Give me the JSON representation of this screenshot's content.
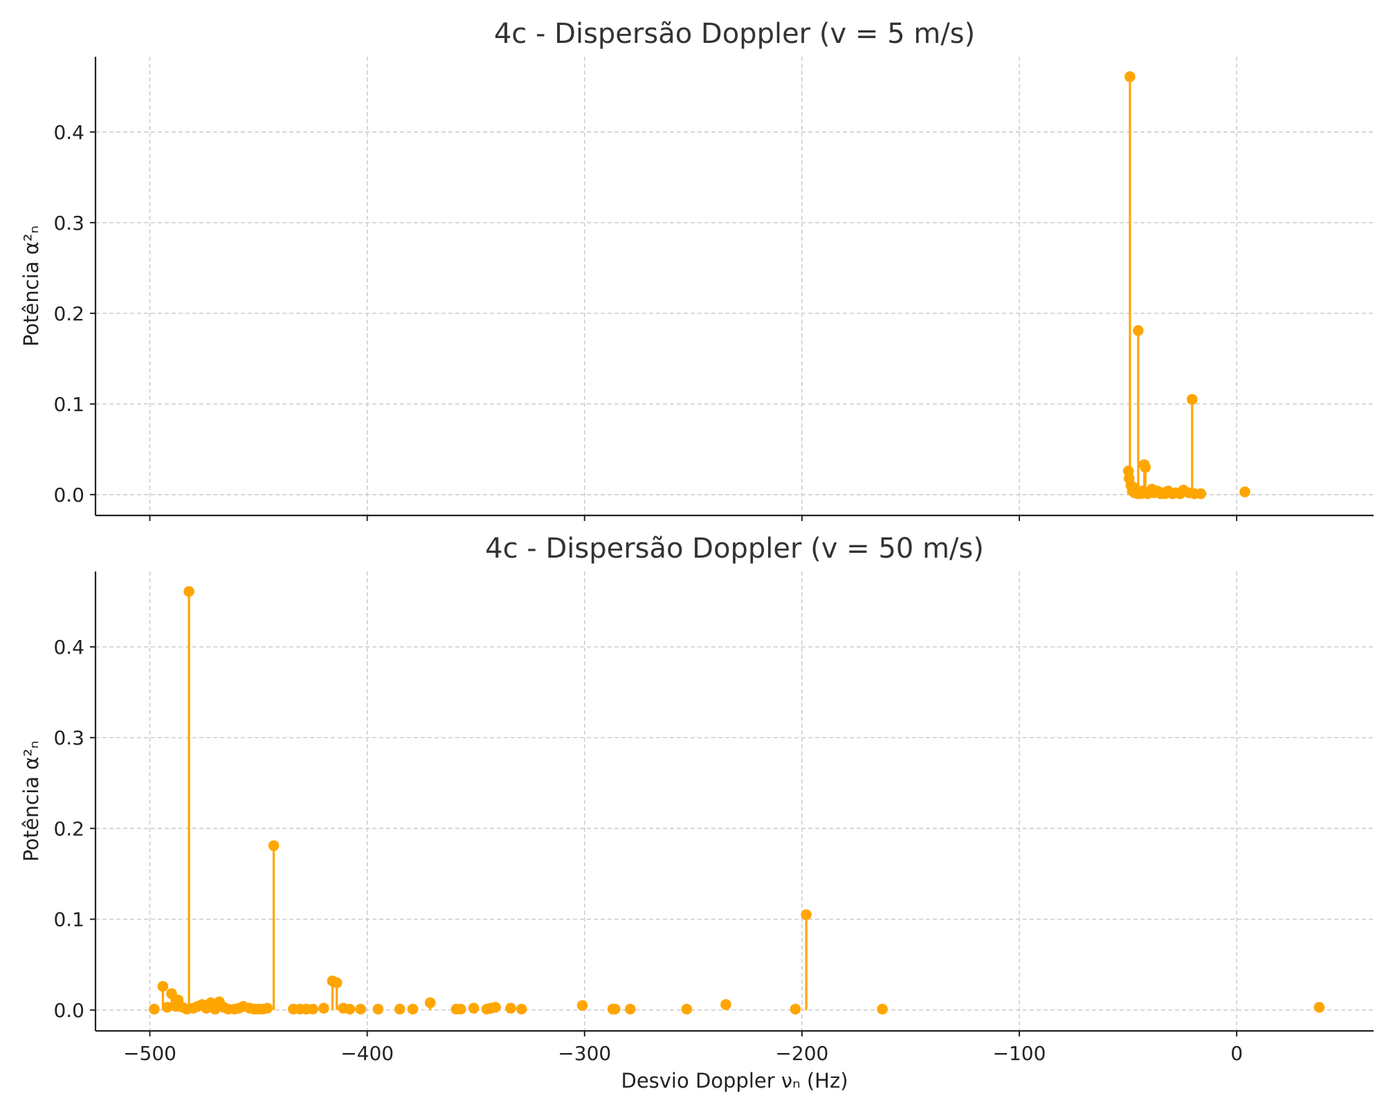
{
  "accent_color": "#FFA500",
  "chart_data": [
    {
      "type": "stem",
      "title": "4c - Dispersão Doppler (v = 5 m/s)",
      "xlabel": "",
      "ylabel": "Potência α²ₙ",
      "xlim": [
        -525,
        63
      ],
      "ylim": [
        -0.023,
        0.483
      ],
      "xticks": [
        -500,
        -400,
        -300,
        -200,
        -100,
        0
      ],
      "xtick_labels": [
        "",
        "",
        "",
        "",
        "",
        ""
      ],
      "yticks": [
        0.0,
        0.1,
        0.2,
        0.3,
        0.4
      ],
      "ytick_labels": [
        "0.0",
        "0.1",
        "0.2",
        "0.3",
        "0.4"
      ],
      "grid": true,
      "color": "#FFA500",
      "x": [
        -49.1,
        -49.8,
        -49.5,
        -48.6,
        -48.0,
        -47.5,
        -47.0,
        -46.2,
        -45.5,
        -45.3,
        -44.8,
        -44.0,
        -43.5,
        -42.5,
        -42.0,
        -41.8,
        -41.0,
        -40.0,
        -39.0,
        -38.0,
        -36.5,
        -35.0,
        -34.0,
        -33.0,
        -31.5,
        -29.5,
        -28.0,
        -26.0,
        -24.5,
        -22.0,
        -20.5,
        -19.5,
        -16.5,
        3.8
      ],
      "y": [
        0.461,
        0.026,
        0.018,
        0.01,
        0.004,
        0.008,
        0.002,
        0.003,
        0.001,
        0.181,
        0.002,
        0.001,
        0.004,
        0.033,
        0.03,
        0.002,
        0.001,
        0.003,
        0.006,
        0.002,
        0.004,
        0.001,
        0.002,
        0.001,
        0.004,
        0.001,
        0.002,
        0.001,
        0.005,
        0.002,
        0.105,
        0.001,
        0.001,
        0.003
      ]
    },
    {
      "type": "stem",
      "title": "4c - Dispersão Doppler (v = 50 m/s)",
      "xlabel": "Desvio Doppler νₙ (Hz)",
      "ylabel": "Potência α²ₙ",
      "xlim": [
        -525,
        63
      ],
      "ylim": [
        -0.023,
        0.483
      ],
      "xticks": [
        -500,
        -400,
        -300,
        -200,
        -100,
        0
      ],
      "xtick_labels": [
        "−500",
        "−400",
        "−300",
        "−200",
        "−100",
        "0"
      ],
      "yticks": [
        0.0,
        0.1,
        0.2,
        0.3,
        0.4
      ],
      "ytick_labels": [
        "0.0",
        "0.1",
        "0.2",
        "0.3",
        "0.4"
      ],
      "grid": true,
      "color": "#FFA500",
      "x": [
        -482,
        -498,
        -494,
        -492,
        -490,
        -488,
        -487,
        -485,
        -483,
        -480,
        -478,
        -476,
        -474,
        -472,
        -470,
        -468,
        -466,
        -464,
        -461,
        -459,
        -457,
        -454,
        -452,
        -450,
        -448,
        -446,
        -443,
        -434,
        -431,
        -428,
        -425,
        -420,
        -416,
        -414,
        -411,
        -408,
        -403,
        -395,
        -385,
        -379,
        -371,
        -359,
        -357,
        -351,
        -345,
        -343,
        -341,
        -334,
        -329,
        -301,
        -287,
        -286,
        -279,
        -253,
        -235,
        -203,
        -198,
        -163,
        38
      ],
      "y": [
        0.461,
        0.001,
        0.026,
        0.003,
        0.018,
        0.004,
        0.011,
        0.003,
        0.001,
        0.002,
        0.004,
        0.006,
        0.002,
        0.008,
        0.001,
        0.009,
        0.003,
        0.001,
        0.001,
        0.002,
        0.004,
        0.002,
        0.001,
        0.001,
        0.001,
        0.002,
        0.181,
        0.001,
        0.001,
        0.001,
        0.001,
        0.002,
        0.032,
        0.03,
        0.002,
        0.001,
        0.001,
        0.001,
        0.001,
        0.001,
        0.008,
        0.001,
        0.001,
        0.002,
        0.001,
        0.002,
        0.003,
        0.002,
        0.001,
        0.005,
        0.001,
        0.001,
        0.001,
        0.001,
        0.006,
        0.001,
        0.105,
        0.001,
        0.003
      ]
    }
  ]
}
